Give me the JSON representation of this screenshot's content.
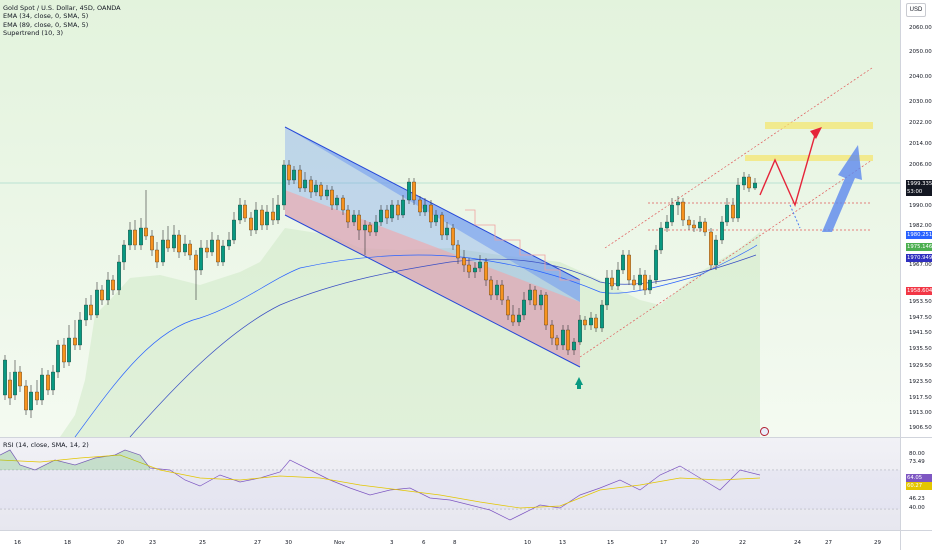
{
  "legend": {
    "symbol": "Gold Spot / U.S. Dollar, 45D, OANDA",
    "ema1": "EMA (34, close, 0, SMA, 5)",
    "ema2": "EMA (89, close, 0, SMA, 5)",
    "supertrend": "Supertrend (10, 3)"
  },
  "currency_button": "USD",
  "rsi_legend": "RSI (14, close, SMA, 14, 2)",
  "price_axis": [
    "2060.000",
    "2050.000",
    "2040.000",
    "2030.000",
    "2022.000",
    "2014.000",
    "2006.000",
    "1990.000",
    "1982.000",
    "1967.000",
    "1953.500",
    "1947.500",
    "1941.500",
    "1935.500",
    "1929.500",
    "1923.500",
    "1917.500",
    "1913.000",
    "1906.500"
  ],
  "price_tags": [
    {
      "label": "1999.335",
      "color": "#131722"
    },
    {
      "label": "53:00",
      "color": "#131722"
    },
    {
      "label": "1980.251",
      "color": "#2962ff"
    },
    {
      "label": "1975.146",
      "color": "#4caf50"
    },
    {
      "label": "1970.949",
      "color": "#2f2fbf"
    },
    {
      "label": "1958.604",
      "color": "#f23645"
    }
  ],
  "rsi_axis": [
    "80.00",
    "73.49",
    "64.05",
    "60.27",
    "46.23",
    "40.00"
  ],
  "rsi_tags": [
    {
      "label": "64.05",
      "color": "#7e57c2"
    },
    {
      "label": "60.27",
      "color": "#e3c600"
    }
  ],
  "time_axis": [
    "16",
    "18",
    "20",
    "23",
    "25",
    "27",
    "30",
    "Nov",
    "3",
    "6",
    "8",
    "10",
    "13",
    "15",
    "17",
    "20",
    "22",
    "24",
    "27",
    "29"
  ],
  "chart_data": {
    "type": "candlestick",
    "colors": {
      "up": "#089981",
      "down": "#f7931e",
      "ema34": "#2962ff",
      "ema89": "#3a4fc4",
      "supertrend_fill": "#b8e0ad",
      "channel_blue": "#6f9bf0",
      "channel_red": "#f4a3a6"
    }
  }
}
